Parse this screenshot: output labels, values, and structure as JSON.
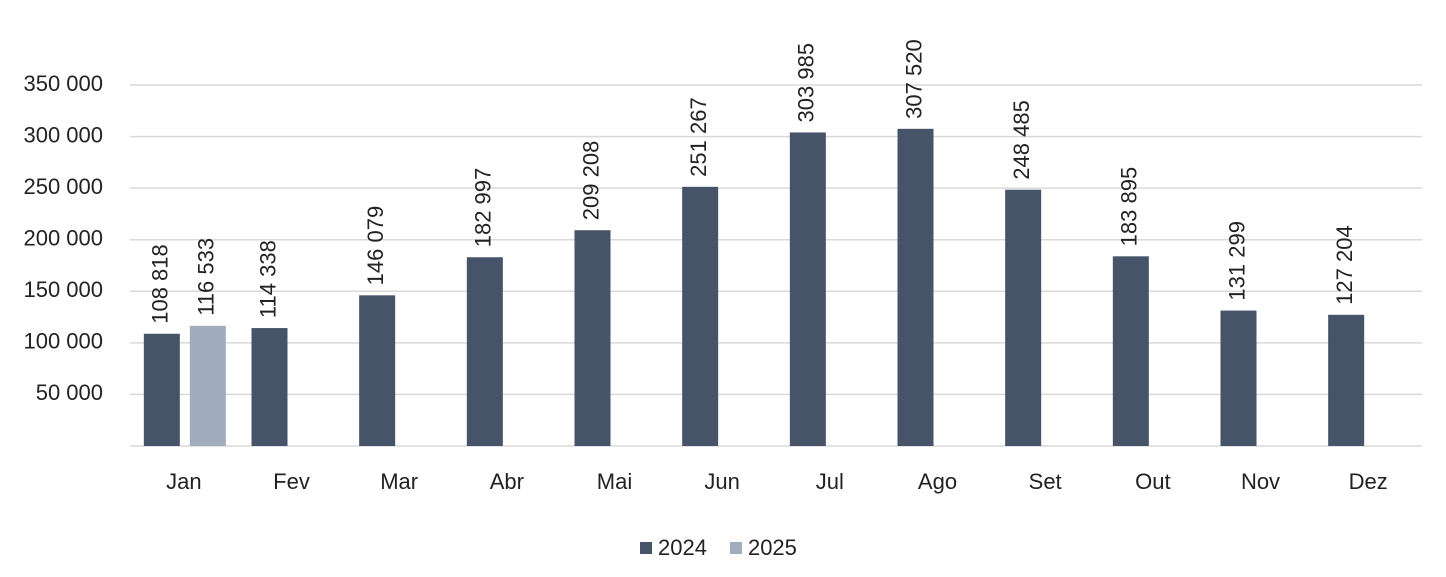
{
  "chart_data": {
    "type": "bar",
    "categories": [
      "Jan",
      "Fev",
      "Mar",
      "Abr",
      "Mai",
      "Jun",
      "Jul",
      "Ago",
      "Set",
      "Out",
      "Nov",
      "Dez"
    ],
    "series": [
      {
        "name": "2024",
        "color": "#465369",
        "values": [
          108818,
          114338,
          146079,
          182997,
          209208,
          251267,
          303985,
          307520,
          248485,
          183895,
          131299,
          127204
        ],
        "value_labels": [
          "108 818",
          "114 338",
          "146 079",
          "182 997",
          "209 208",
          "251 267",
          "303 985",
          "307 520",
          "248 485",
          "183 895",
          "131 299",
          "127 204"
        ]
      },
      {
        "name": "2025",
        "color": "#a1acbe",
        "values": [
          116533,
          null,
          null,
          null,
          null,
          null,
          null,
          null,
          null,
          null,
          null,
          null
        ],
        "value_labels": [
          "116 533",
          null,
          null,
          null,
          null,
          null,
          null,
          null,
          null,
          null,
          null,
          null
        ]
      }
    ],
    "ylim": [
      0,
      350000
    ],
    "yticks": [
      {
        "value": 50000,
        "label": "50 000"
      },
      {
        "value": 100000,
        "label": "100 000"
      },
      {
        "value": 150000,
        "label": "150 000"
      },
      {
        "value": 200000,
        "label": "200 000"
      },
      {
        "value": 250000,
        "label": "250 000"
      },
      {
        "value": 300000,
        "label": "300 000"
      },
      {
        "value": 350000,
        "label": "350 000"
      }
    ],
    "grid": true,
    "legend": "bottom"
  }
}
